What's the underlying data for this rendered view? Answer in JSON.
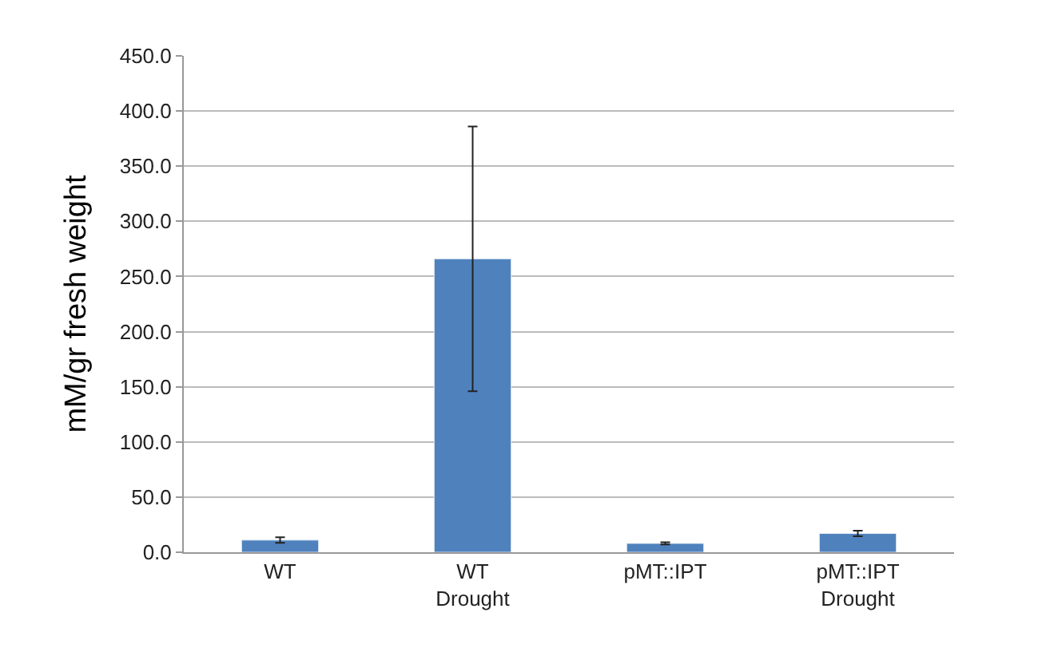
{
  "chart_data": {
    "type": "bar",
    "ylabel": "mM/gr fresh weight",
    "categories": [
      "WT",
      "WT\nDrought",
      "pMT::IPT",
      "pMT::IPT\nDrought"
    ],
    "values": [
      11,
      266,
      8,
      17
    ],
    "errors": [
      2.5,
      120,
      1,
      2.5
    ],
    "color": "#4f81bd",
    "ylim": [
      0,
      450
    ],
    "yticks": [
      {
        "value": 0,
        "label": "0.0"
      },
      {
        "value": 50,
        "label": "50.0"
      },
      {
        "value": 100,
        "label": "100.0"
      },
      {
        "value": 150,
        "label": "150.0"
      },
      {
        "value": 200,
        "label": "200.0"
      },
      {
        "value": 250,
        "label": "250.0"
      },
      {
        "value": 300,
        "label": "300.0"
      },
      {
        "value": 350,
        "label": "350.0"
      },
      {
        "value": 400,
        "label": "400.0"
      },
      {
        "value": 450,
        "label": "450.0"
      }
    ],
    "grid": "y",
    "legend": false
  }
}
